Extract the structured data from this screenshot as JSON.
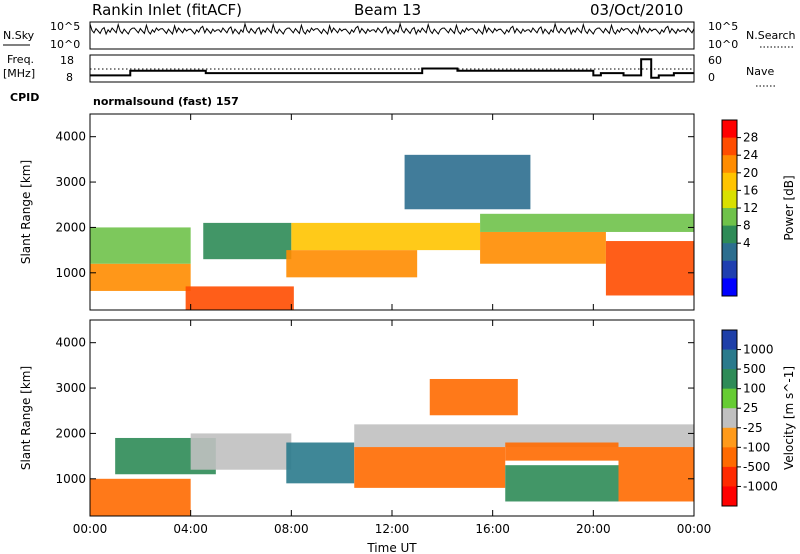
{
  "header": {
    "station": "Rankin Inlet (fitACF)",
    "beam": "Beam 13",
    "date": "03/Oct/2010"
  },
  "top_panels": {
    "nsky_label": "N.Sky",
    "nsky_ticks": [
      "10^5",
      "10^0"
    ],
    "nsearch_label": "N.Search",
    "nsearch_ticks": [
      "10^5",
      "10^0"
    ],
    "freq_label_line1": "Freq.",
    "freq_label_line2": "[MHz]",
    "freq_ticks": [
      "18",
      "8"
    ],
    "nave_label": "Nave",
    "nave_ticks": [
      "60",
      "0"
    ],
    "cpid_label": "CPID",
    "cpid_value": "normalsound (fast) 157"
  },
  "axes": {
    "ylabel": "Slant Range [km]",
    "xlabel": "Time UT",
    "x_ticks": [
      "00:00",
      "04:00",
      "08:00",
      "12:00",
      "16:00",
      "20:00",
      "00:00"
    ],
    "y_ticks": [
      "1000",
      "2000",
      "3000",
      "4000"
    ]
  },
  "power_colorbar": {
    "label": "Power [dB]",
    "ticks": [
      "28",
      "24",
      "20",
      "16",
      "12",
      "8",
      "4"
    ],
    "colors": [
      "#ff0000",
      "#ff4d00",
      "#ff8c00",
      "#ffc400",
      "#d9e000",
      "#6fc24a",
      "#2e8b57",
      "#2c6e8f",
      "#1f3fb0",
      "#0000ff"
    ]
  },
  "velocity_colorbar": {
    "label": "Velocity [m s^-1]",
    "ticks": [
      "1000",
      "500",
      "100",
      "25",
      "-25",
      "-100",
      "-500",
      "-1000"
    ],
    "colors": [
      "#1e3fa8",
      "#2a7a8c",
      "#2e8b57",
      "#66cc33",
      "#c0c0c0",
      "#ff9a1a",
      "#ff6a00",
      "#ff2a00",
      "#ff0000"
    ]
  },
  "chart_data": {
    "type": "heatmap",
    "title": "Rankin Inlet (fitACF) Beam 13 03/Oct/2010",
    "xlabel": "Time UT",
    "ylabel": "Slant Range [km]",
    "xlim": [
      0,
      24
    ],
    "ylim": [
      180,
      4500
    ],
    "frequency_mhz": [
      {
        "t": 0.0,
        "v": 10
      },
      {
        "t": 1.6,
        "v": 12
      },
      {
        "t": 4.6,
        "v": 11
      },
      {
        "t": 13.2,
        "v": 13
      },
      {
        "t": 14.6,
        "v": 12
      },
      {
        "t": 20.0,
        "v": 10
      },
      {
        "t": 20.3,
        "v": 11
      },
      {
        "t": 21.2,
        "v": 10
      },
      {
        "t": 21.9,
        "v": 17
      },
      {
        "t": 22.3,
        "v": 9
      },
      {
        "t": 22.6,
        "v": 10
      },
      {
        "t": 23.2,
        "v": 11
      }
    ],
    "power_bands": [
      {
        "t0": 0.0,
        "t1": 4.0,
        "r0": 600,
        "r1": 1200,
        "dB": 26
      },
      {
        "t0": 0.0,
        "t1": 4.0,
        "r0": 1200,
        "r1": 2000,
        "dB": 14
      },
      {
        "t0": 3.8,
        "t1": 8.1,
        "r0": 180,
        "r1": 700,
        "dB": 27
      },
      {
        "t0": 4.5,
        "t1": 8.0,
        "r0": 1300,
        "r1": 2100,
        "dB": 12
      },
      {
        "t0": 7.8,
        "t1": 13.0,
        "r0": 900,
        "r1": 1500,
        "dB": 25
      },
      {
        "t0": 8.0,
        "t1": 15.5,
        "r0": 1500,
        "r1": 2100,
        "dB": 20
      },
      {
        "t0": 15.5,
        "t1": 20.5,
        "r0": 1200,
        "r1": 1900,
        "dB": 26
      },
      {
        "t0": 15.5,
        "t1": 24.0,
        "r0": 1900,
        "r1": 2300,
        "dB": 13
      },
      {
        "t0": 20.5,
        "t1": 24.0,
        "r0": 500,
        "r1": 1700,
        "dB": 28
      },
      {
        "t0": 12.5,
        "t1": 17.5,
        "r0": 2400,
        "r1": 3600,
        "dB": 6
      }
    ],
    "velocity_bands": [
      {
        "t0": 0.0,
        "t1": 4.0,
        "r0": 180,
        "r1": 1000,
        "v": -300
      },
      {
        "t0": 1.0,
        "t1": 5.0,
        "r0": 1100,
        "r1": 1900,
        "v": 300
      },
      {
        "t0": 4.0,
        "t1": 8.0,
        "r0": 1200,
        "r1": 2000,
        "v": 0
      },
      {
        "t0": 7.8,
        "t1": 10.5,
        "r0": 900,
        "r1": 1800,
        "v": 800
      },
      {
        "t0": 10.5,
        "t1": 16.5,
        "r0": 800,
        "r1": 1700,
        "v": -300
      },
      {
        "t0": 10.5,
        "t1": 24.0,
        "r0": 1700,
        "r1": 2200,
        "v": 0
      },
      {
        "t0": 16.5,
        "t1": 21.0,
        "r0": 1400,
        "r1": 1800,
        "v": -150
      },
      {
        "t0": 16.5,
        "t1": 21.0,
        "r0": 500,
        "r1": 1300,
        "v": 150
      },
      {
        "t0": 21.0,
        "t1": 24.0,
        "r0": 500,
        "r1": 1700,
        "v": -400
      },
      {
        "t0": 13.5,
        "t1": 17.0,
        "r0": 2400,
        "r1": 3200,
        "v": -300
      }
    ]
  }
}
